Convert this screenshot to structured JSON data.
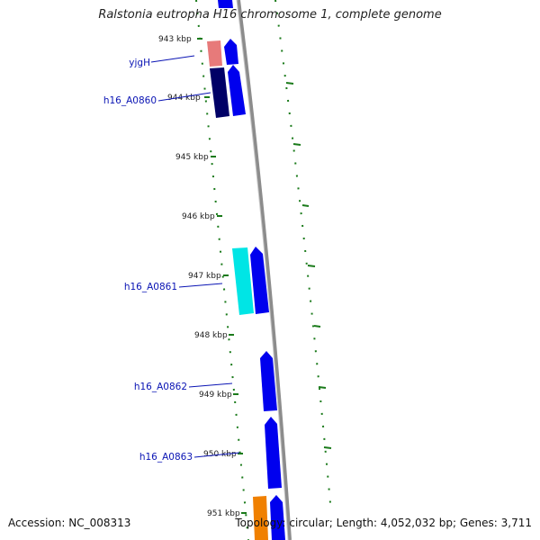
{
  "title": "Ralstonia eutropha H16 chromosome 1, complete genome",
  "footer": {
    "accession": "Accession: NC_008313",
    "topology": "Topology: circular; Length: 4,052,032 bp; Genes: 3,711"
  },
  "ticks": [
    {
      "label": "943 kbp"
    },
    {
      "label": "944 kbp"
    },
    {
      "label": "945 kbp"
    },
    {
      "label": "946 kbp"
    },
    {
      "label": "947 kbp"
    },
    {
      "label": "948 kbp"
    },
    {
      "label": "949 kbp"
    },
    {
      "label": "950 kbp"
    },
    {
      "label": "951 kbp"
    }
  ],
  "gene_labels": [
    {
      "label": "yjgH"
    },
    {
      "label": "h16_A0860"
    },
    {
      "label": "h16_A0861"
    },
    {
      "label": "h16_A0862"
    },
    {
      "label": "h16_A0863"
    }
  ],
  "colors": {
    "cds_blue": "#0000ee",
    "cds_dark": "#000066",
    "rna_salmon": "#e77a7a",
    "cds_cyan": "#00e5e5",
    "cds_orange": "#f08000",
    "backbone": "#8c8c8c",
    "gc_dots": "#1a7a1a",
    "label_blue": "#0a14b4"
  }
}
